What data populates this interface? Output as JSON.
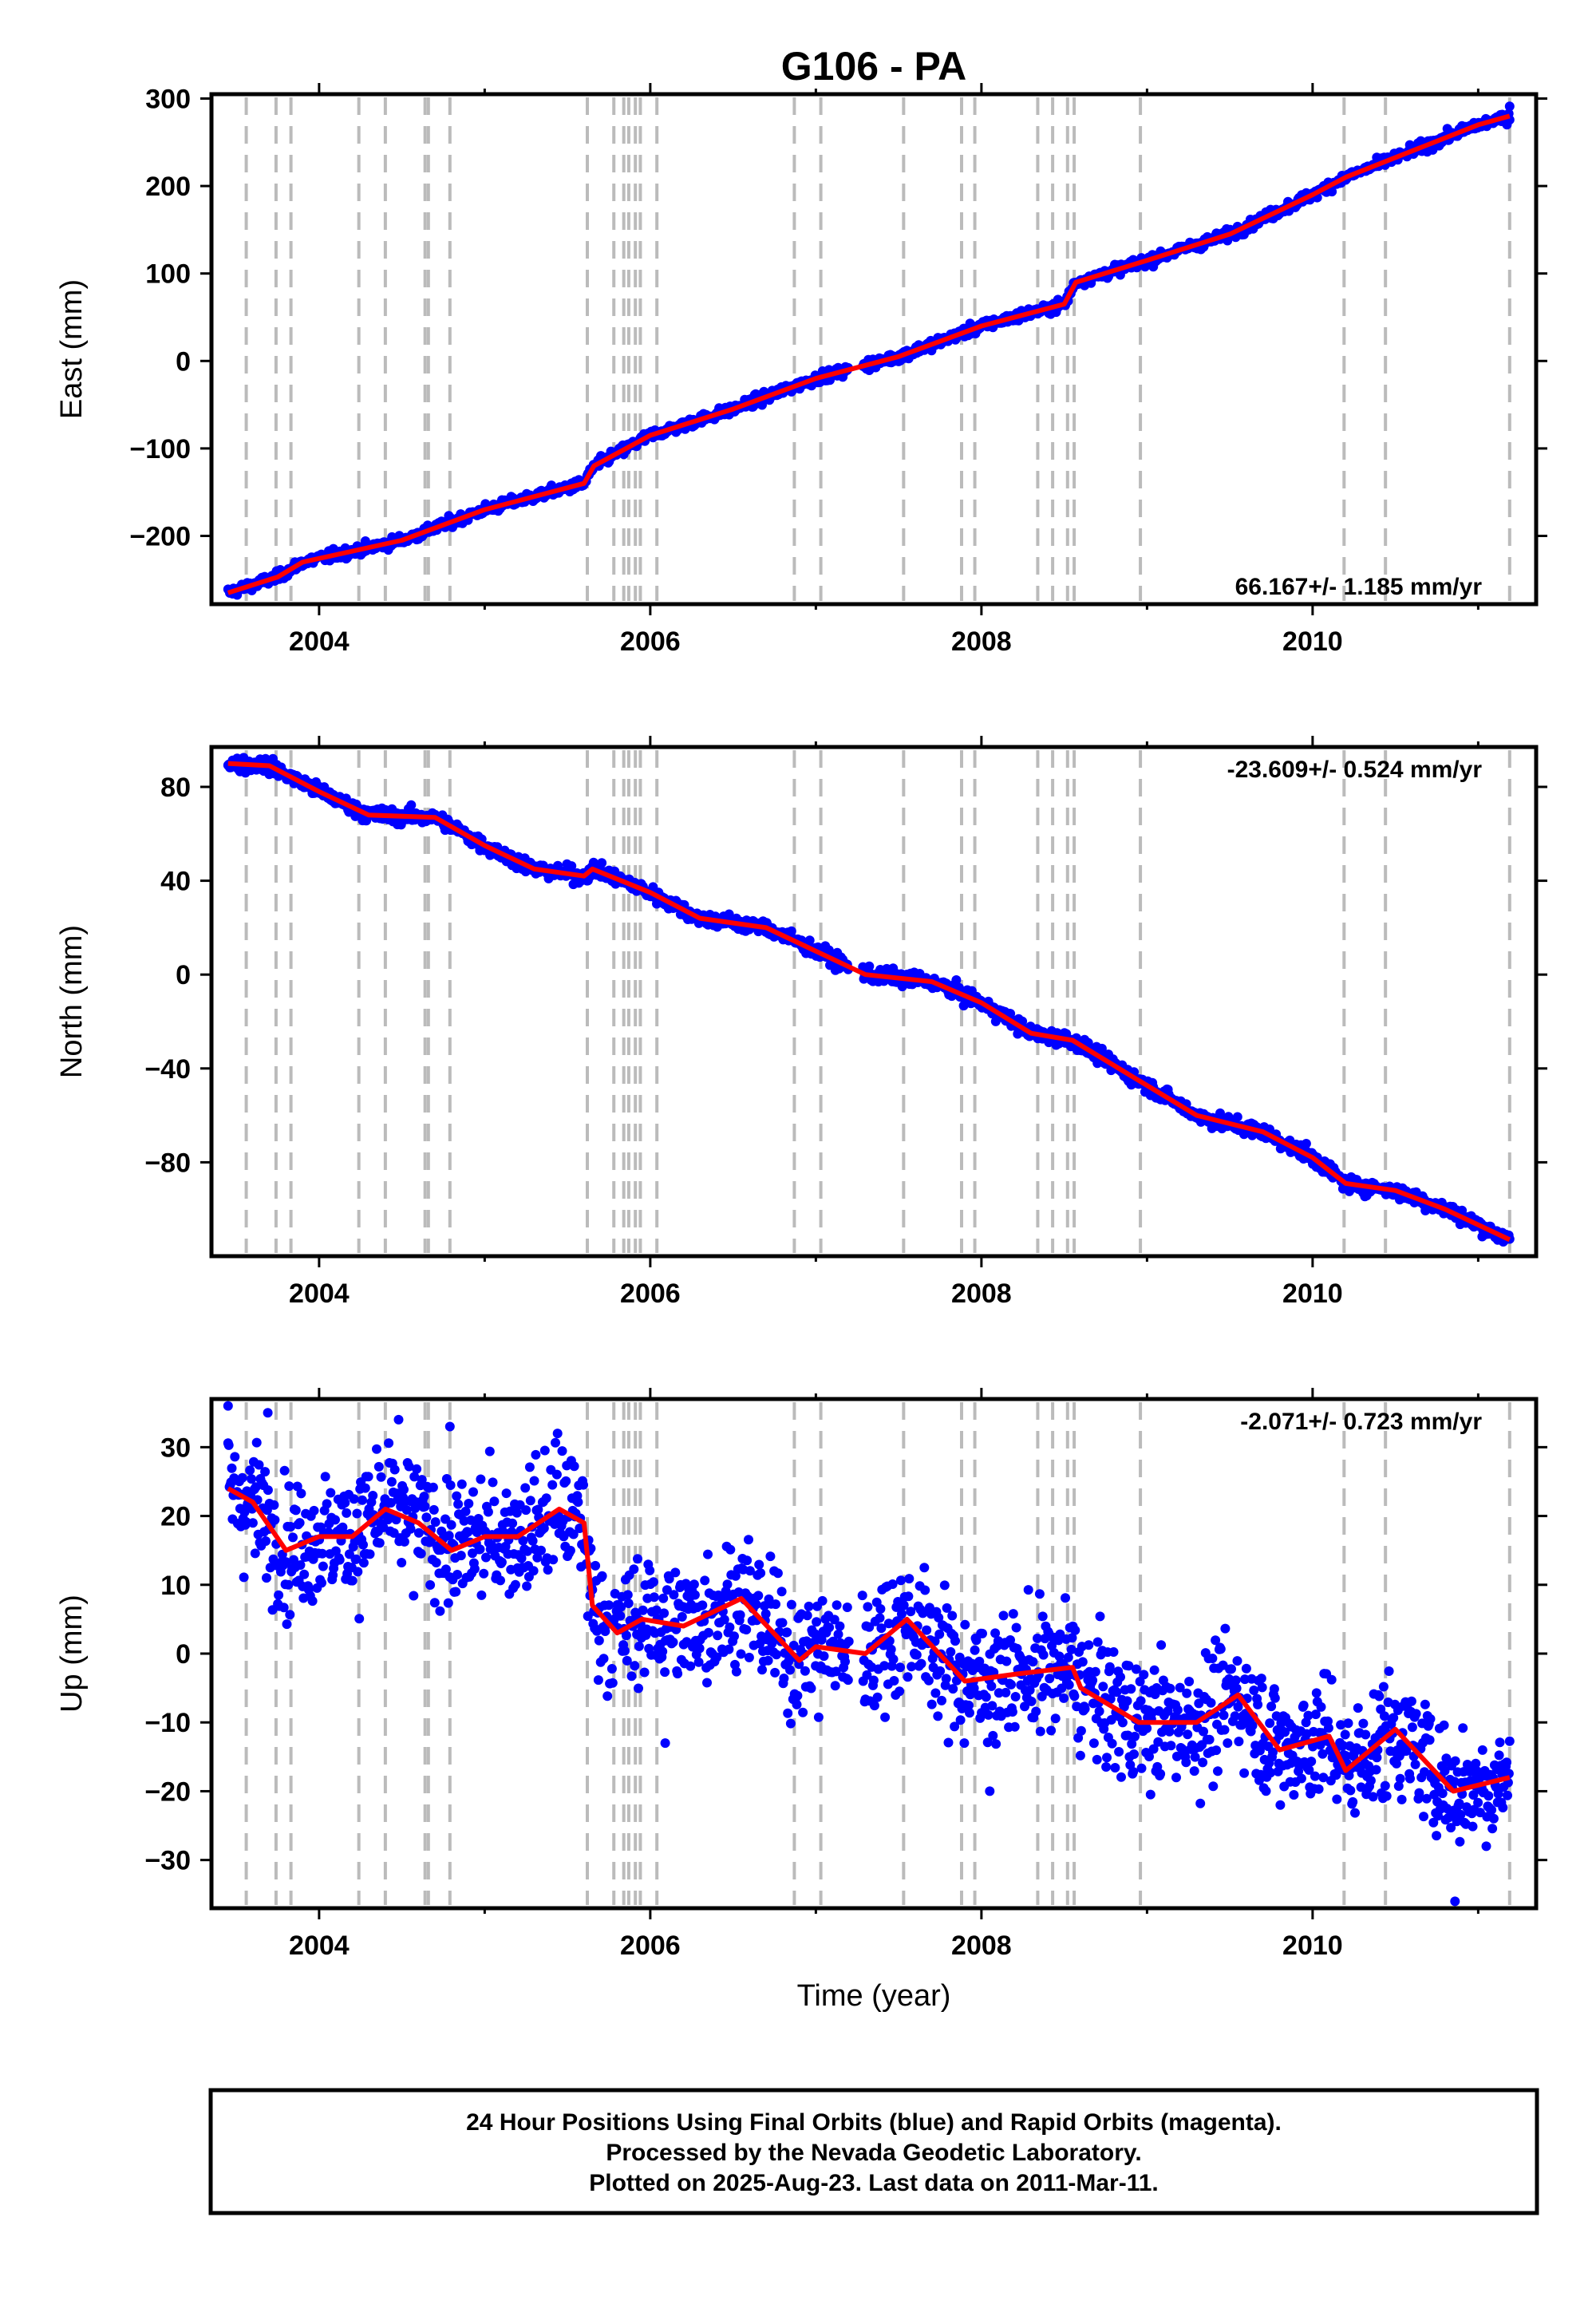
{
  "chart_data": {
    "title": "G106 - PA",
    "type": "scatter",
    "colors": {
      "final_orbits": "#0000ff",
      "rapid_orbits": "#ff00ff",
      "model": "#ff0000",
      "events": "#bbbbbb"
    },
    "xlim": [
      2003.35,
      2011.35
    ],
    "x_ticks": [
      2004,
      2006,
      2008,
      2010
    ],
    "x_tick_labels": [
      "2004",
      "2006",
      "2008",
      "2010"
    ],
    "xlabel": "Time (year)",
    "events": [
      2003.56,
      2003.74,
      2003.83,
      2004.24,
      2004.4,
      2004.64,
      2004.66,
      2004.79,
      2005.62,
      2005.78,
      2005.84,
      2005.87,
      2005.91,
      2005.94,
      2006.04,
      2006.87,
      2007.03,
      2007.53,
      2007.88,
      2007.96,
      2008.34,
      2008.43,
      2008.52,
      2008.56,
      2008.96,
      2010.19,
      2010.44,
      2011.19
    ],
    "panels": [
      {
        "id": "east",
        "ylabel": "East (mm)",
        "ylim": [
          -278,
          305
        ],
        "y_ticks": [
          300,
          200,
          100,
          0,
          -100,
          -200
        ],
        "y_tick_labels": [
          "300",
          "200",
          "100",
          "0",
          "−100",
          "−200"
        ],
        "rate_label": "66.167+/- 1.185 mm/yr",
        "rate_position": "bottom-right",
        "model": {
          "x": [
            2003.45,
            2003.75,
            2003.9,
            2004.5,
            2005.0,
            2005.6,
            2005.66,
            2006.0,
            2006.5,
            2007.0,
            2007.5,
            2008.0,
            2008.5,
            2008.57,
            2009.0,
            2009.5,
            2010.0,
            2010.2,
            2010.6,
            2011.0,
            2011.19
          ],
          "y": [
            -265,
            -247,
            -230,
            -205,
            -170,
            -140,
            -120,
            -85,
            -55,
            -20,
            5,
            40,
            65,
            90,
            115,
            145,
            190,
            210,
            240,
            270,
            280
          ]
        },
        "noise": 3,
        "outliers": [
          {
            "x": 2011.19,
            "y": 291
          }
        ]
      },
      {
        "id": "north",
        "ylabel": "North (mm)",
        "ylim": [
          -120,
          97
        ],
        "y_ticks": [
          80,
          40,
          0,
          -40,
          -80
        ],
        "y_tick_labels": [
          "80",
          "40",
          "0",
          "−40",
          "−80"
        ],
        "rate_label": "-23.609+/- 0.524 mm/yr",
        "rate_position": "top-right",
        "model": {
          "x": [
            2003.45,
            2003.7,
            2004.0,
            2004.3,
            2004.7,
            2005.0,
            2005.3,
            2005.6,
            2005.65,
            2006.0,
            2006.3,
            2006.7,
            2007.0,
            2007.3,
            2007.7,
            2008.0,
            2008.3,
            2008.55,
            2008.9,
            2009.3,
            2009.7,
            2010.0,
            2010.2,
            2010.5,
            2010.8,
            2011.19
          ],
          "y": [
            90,
            89,
            78,
            68,
            67,
            55,
            45,
            42,
            45,
            35,
            24,
            20,
            10,
            0,
            -3,
            -12,
            -25,
            -28,
            -43,
            -60,
            -67,
            -78,
            -89,
            -92,
            -100,
            -113
          ]
        },
        "noise": 1.6,
        "outliers": []
      },
      {
        "id": "up",
        "ylabel": "Up (mm)",
        "ylim": [
          -37,
          37
        ],
        "y_ticks": [
          30,
          20,
          10,
          0,
          -10,
          -20,
          -30
        ],
        "y_tick_labels": [
          "30",
          "20",
          "10",
          "0",
          "−10",
          "−20",
          "−30"
        ],
        "rate_label": "-2.071+/- 0.723 mm/yr",
        "rate_position": "top-right",
        "model": {
          "x": [
            2003.45,
            2003.6,
            2003.8,
            2004.0,
            2004.2,
            2004.4,
            2004.6,
            2004.8,
            2005.0,
            2005.2,
            2005.45,
            2005.6,
            2005.65,
            2005.8,
            2005.95,
            2006.2,
            2006.55,
            2006.9,
            2007.0,
            2007.3,
            2007.55,
            2007.9,
            2008.2,
            2008.55,
            2008.6,
            2008.95,
            2009.3,
            2009.55,
            2009.8,
            2010.1,
            2010.2,
            2010.5,
            2010.85,
            2011.19
          ],
          "y": [
            24,
            22,
            15,
            17,
            17,
            21,
            19,
            15,
            17,
            17,
            21,
            19,
            7,
            3,
            5,
            4,
            8,
            -1,
            1,
            0,
            5,
            -4,
            -3,
            -2,
            -5,
            -10,
            -10,
            -6,
            -14,
            -12,
            -17,
            -11,
            -20,
            -18
          ]
        },
        "noise": 4.5,
        "outliers": [
          {
            "x": 2004.48,
            "y": 34
          },
          {
            "x": 2004.79,
            "y": 33
          },
          {
            "x": 2003.69,
            "y": 35
          },
          {
            "x": 2010.86,
            "y": -36
          },
          {
            "x": 2005.44,
            "y": 32
          },
          {
            "x": 2003.45,
            "y": 36
          },
          {
            "x": 2006.09,
            "y": -13
          },
          {
            "x": 2008.05,
            "y": -20
          }
        ]
      }
    ]
  },
  "footer": {
    "line1": "24 Hour Positions Using Final Orbits (blue) and Rapid Orbits (magenta).",
    "line2": "Processed by the Nevada Geodetic Laboratory.",
    "line3": "Plotted on 2025-Aug-23. Last data on 2011-Mar-11."
  }
}
